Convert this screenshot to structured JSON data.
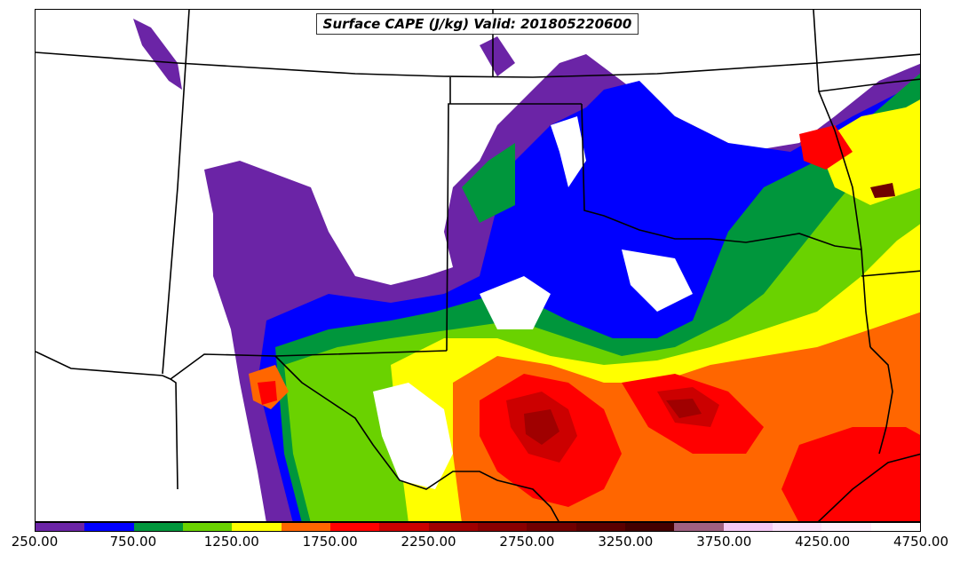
{
  "map": {
    "title": "Surface CAPE (J/kg) Valid: 201805220600",
    "field": "Surface CAPE",
    "units": "J/kg",
    "valid_time": "201805220600"
  },
  "colorbar": {
    "levels": [
      250,
      500,
      750,
      1000,
      1250,
      1500,
      1750,
      2000,
      2250,
      2500,
      2750,
      3000,
      3250,
      3500,
      3750,
      4000,
      4250,
      4500,
      4750
    ],
    "colors": [
      "#6b24a6",
      "#0000ff",
      "#00963c",
      "#6ad200",
      "#ffff00",
      "#ff6600",
      "#ff0000",
      "#cc0000",
      "#a00000",
      "#8a0000",
      "#700000",
      "#5a0000",
      "#420000",
      "#a06080",
      "#f5c8f5",
      "#fbe2fb",
      "#fdf0fd",
      "#ffffff"
    ],
    "tick_labels": [
      "250.00",
      "750.00",
      "1250.00",
      "1750.00",
      "2250.00",
      "2750.00",
      "3250.00",
      "3750.00",
      "4250.00",
      "4750.00"
    ]
  }
}
